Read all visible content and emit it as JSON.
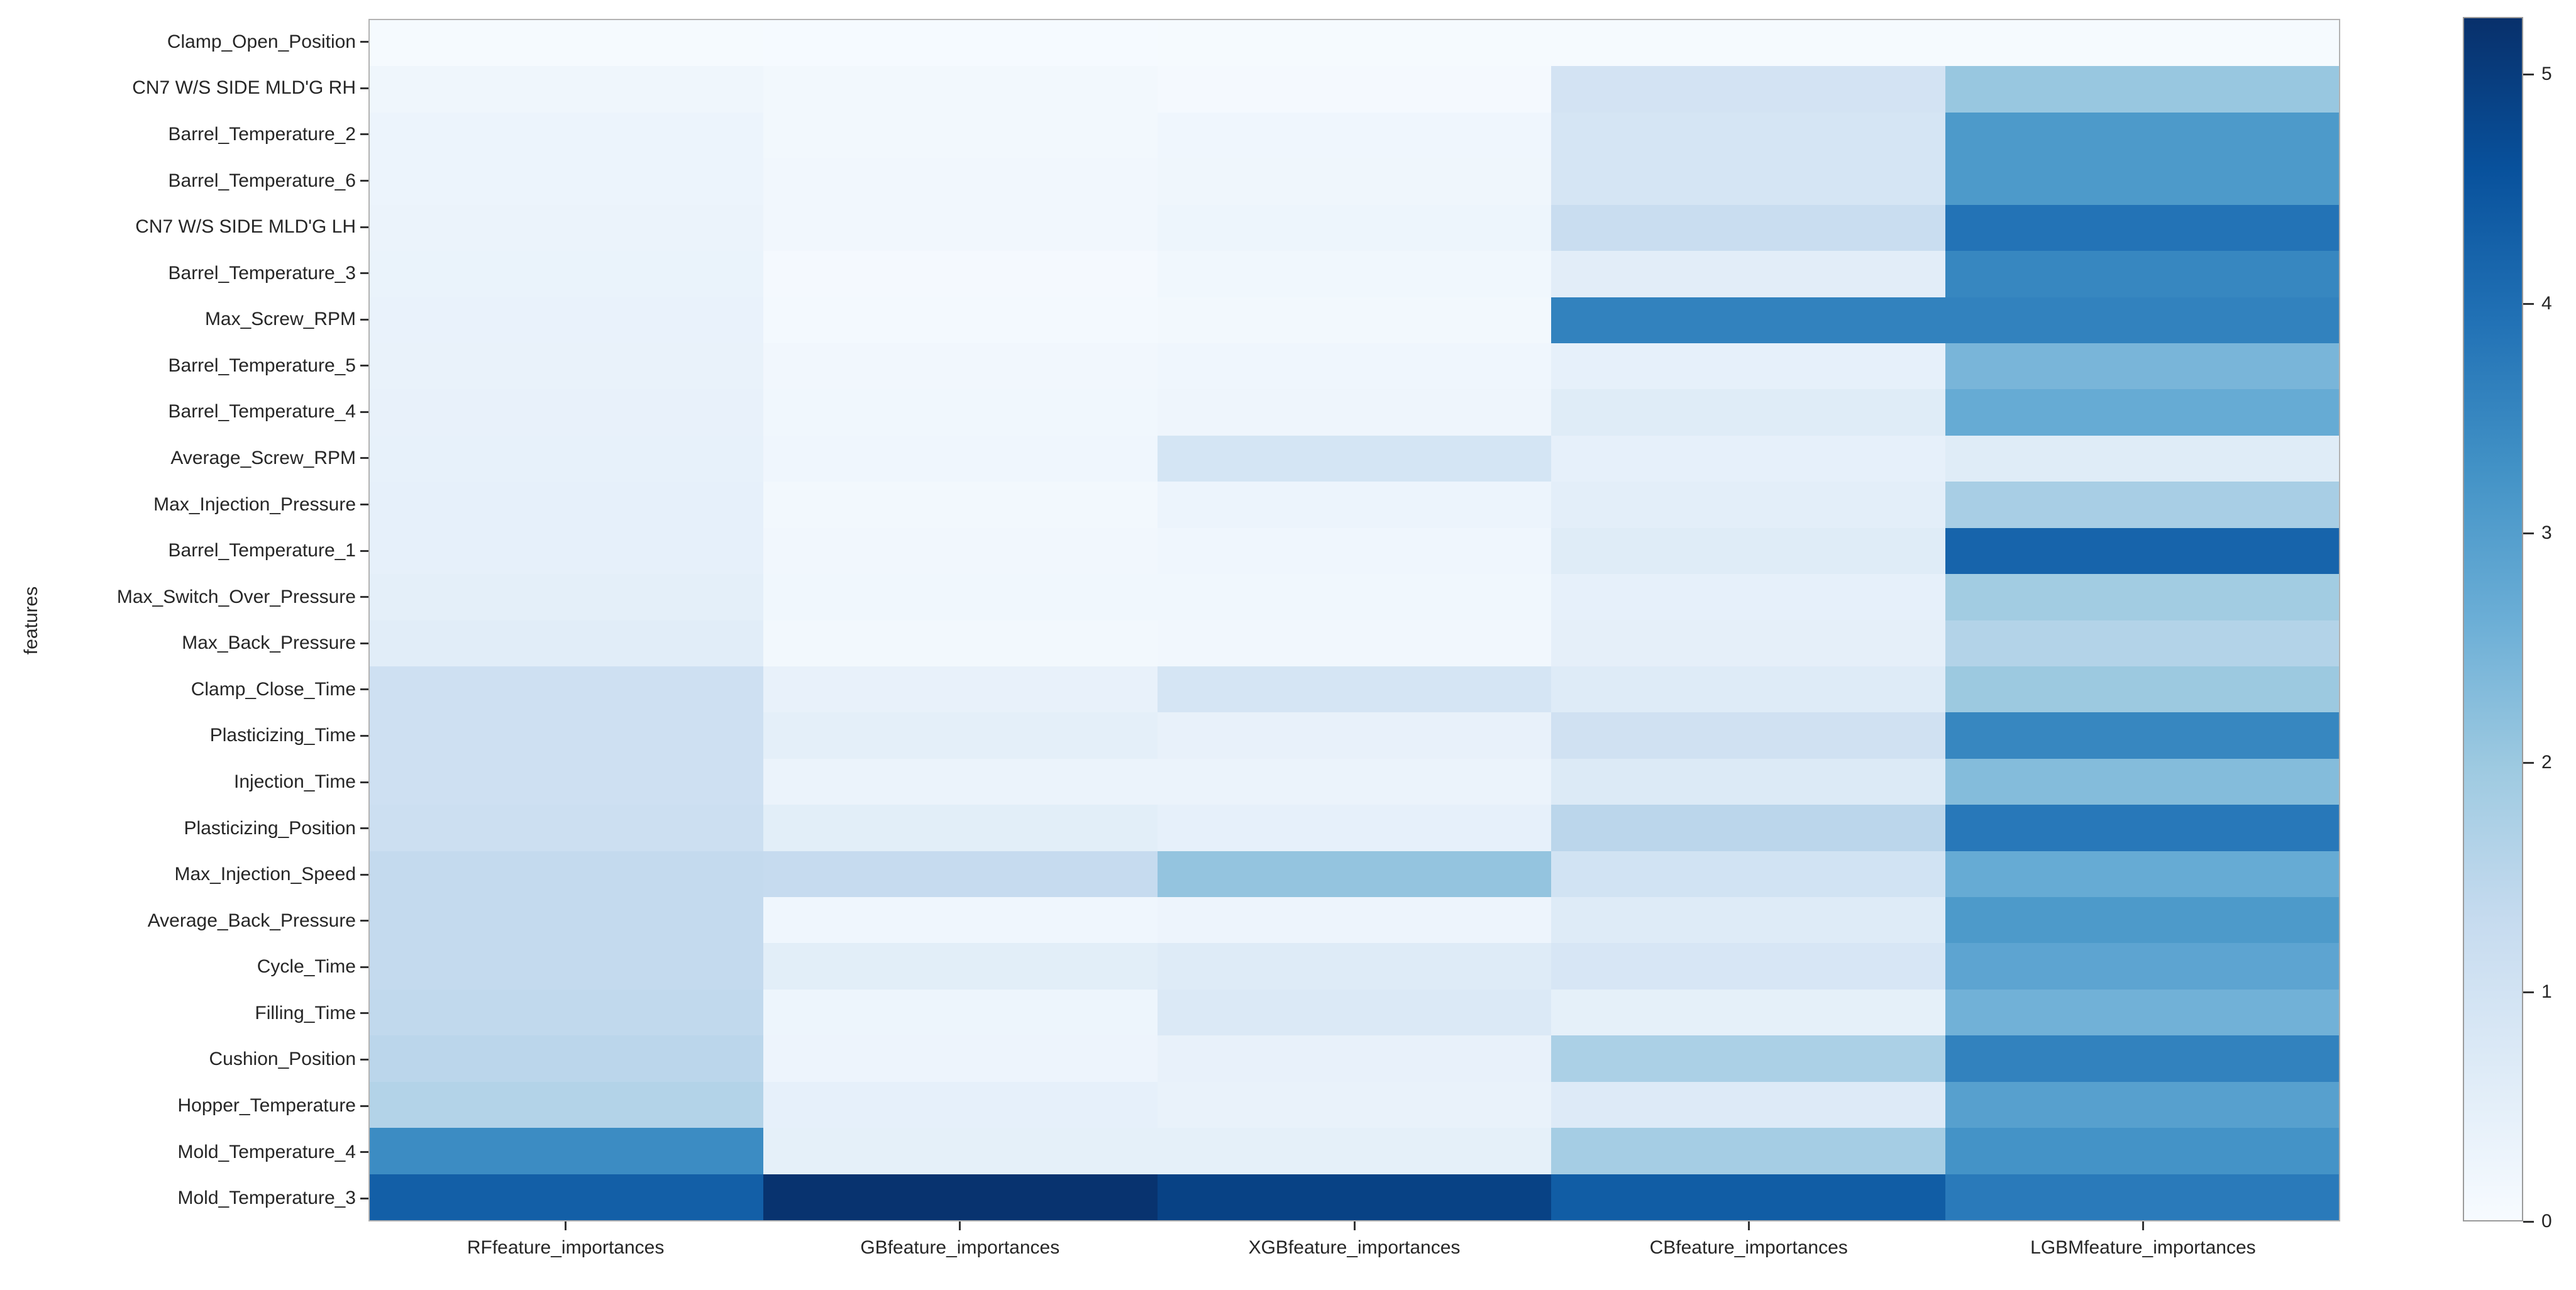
{
  "chart_data": {
    "type": "heatmap",
    "title": "",
    "xlabel": "",
    "ylabel": "features",
    "colormap": "Blues",
    "vmin": 0,
    "vmax": 5.25,
    "grid": false,
    "legend_position": "right-colorbar",
    "colorbar_ticks": [
      0,
      1,
      2,
      3,
      4,
      5
    ],
    "columns": [
      "RFfeature_importances",
      "GBfeature_importances",
      "XGBfeature_importances",
      "CBfeature_importances",
      "LGBMfeature_importances"
    ],
    "rows": [
      "Clamp_Open_Position",
      "CN7 W/S SIDE MLD'G RH",
      "Barrel_Temperature_2",
      "Barrel_Temperature_6",
      "CN7 W/S SIDE MLD'G LH",
      "Barrel_Temperature_3",
      "Max_Screw_RPM",
      "Barrel_Temperature_5",
      "Barrel_Temperature_4",
      "Average_Screw_RPM",
      "Max_Injection_Pressure",
      "Barrel_Temperature_1",
      "Max_Switch_Over_Pressure",
      "Max_Back_Pressure",
      "Clamp_Close_Time",
      "Plasticizing_Time",
      "Injection_Time",
      "Plasticizing_Position",
      "Max_Injection_Speed",
      "Average_Back_Pressure",
      "Cycle_Time",
      "Filling_Time",
      "Cushion_Position",
      "Hopper_Temperature",
      "Mold_Temperature_4",
      "Mold_Temperature_3"
    ],
    "values": [
      [
        0.06,
        0.04,
        0.05,
        0.05,
        0.06
      ],
      [
        0.22,
        0.13,
        0.07,
        0.97,
        2.05
      ],
      [
        0.28,
        0.13,
        0.2,
        0.9,
        3.1
      ],
      [
        0.28,
        0.16,
        0.22,
        0.9,
        3.1
      ],
      [
        0.32,
        0.16,
        0.25,
        1.22,
        3.9
      ],
      [
        0.33,
        0.09,
        0.18,
        0.56,
        3.5
      ],
      [
        0.36,
        0.1,
        0.13,
        3.6,
        3.6
      ],
      [
        0.37,
        0.15,
        0.2,
        0.45,
        2.45
      ],
      [
        0.39,
        0.18,
        0.24,
        0.62,
        2.7
      ],
      [
        0.42,
        0.2,
        0.92,
        0.45,
        0.63
      ],
      [
        0.44,
        0.13,
        0.28,
        0.52,
        1.8
      ],
      [
        0.45,
        0.15,
        0.2,
        0.62,
        4.2
      ],
      [
        0.5,
        0.18,
        0.18,
        0.45,
        1.9
      ],
      [
        0.58,
        0.13,
        0.15,
        0.48,
        1.62
      ],
      [
        1.1,
        0.4,
        0.9,
        0.65,
        2.0
      ],
      [
        1.1,
        0.5,
        0.4,
        1.05,
        3.5
      ],
      [
        1.1,
        0.32,
        0.32,
        0.7,
        2.3
      ],
      [
        1.15,
        0.55,
        0.44,
        1.5,
        3.8
      ],
      [
        1.35,
        1.3,
        2.1,
        1.0,
        2.7
      ],
      [
        1.35,
        0.2,
        0.27,
        0.65,
        3.1
      ],
      [
        1.35,
        0.55,
        0.65,
        0.85,
        2.85
      ],
      [
        1.4,
        0.25,
        0.75,
        0.46,
        2.55
      ],
      [
        1.5,
        0.27,
        0.4,
        1.75,
        3.6
      ],
      [
        1.62,
        0.44,
        0.37,
        0.68,
        2.95
      ],
      [
        3.4,
        0.46,
        0.47,
        1.85,
        3.25
      ],
      [
        4.3,
        5.2,
        4.9,
        4.35,
        3.75
      ]
    ]
  },
  "colors": {
    "background": "#ffffff",
    "text": "#262626",
    "spine": "#b3b3b3",
    "tick": "#333333",
    "colorbar_outline": "#9a9a9a",
    "blues_anchors": [
      "#f7fbff",
      "#deebf7",
      "#c6dbef",
      "#9ecae1",
      "#6baed6",
      "#4292c6",
      "#2171b5",
      "#08519c",
      "#08306b"
    ]
  }
}
